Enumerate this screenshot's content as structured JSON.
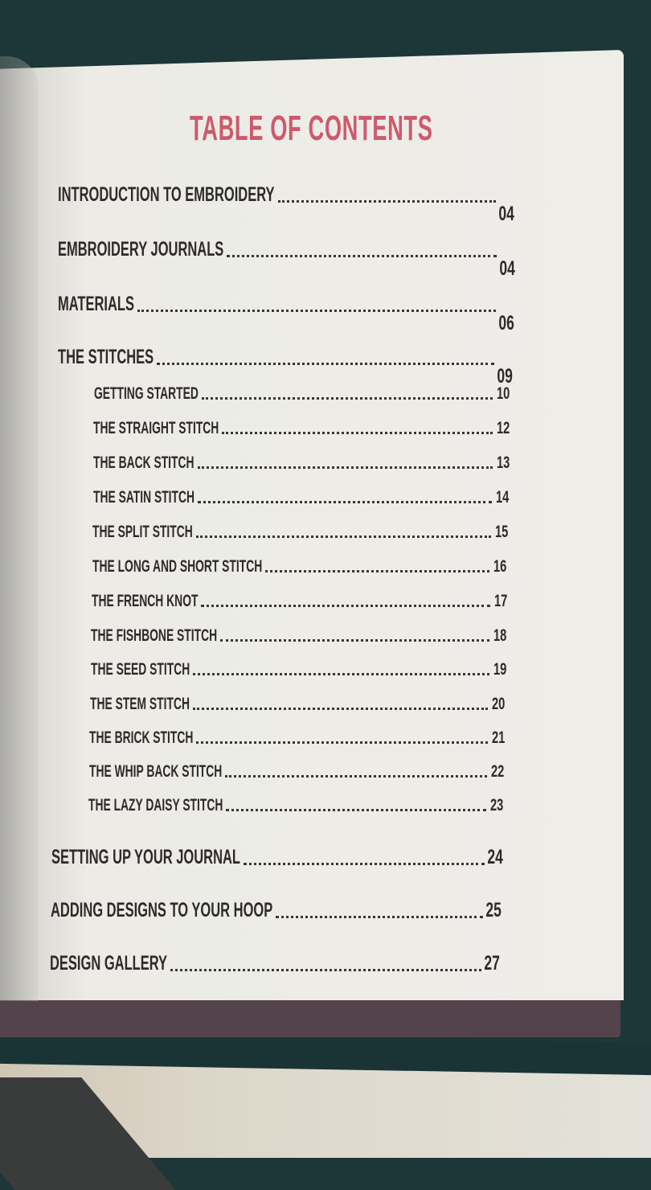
{
  "title": "TABLE OF CONTENTS",
  "entries": [
    {
      "label": "INTRODUCTION TO EMBROIDERY",
      "page": "04",
      "level": 1
    },
    {
      "label": "EMBROIDERY JOURNALS",
      "page": "04",
      "level": 1
    },
    {
      "label": "MATERIALS",
      "page": "06",
      "level": 1
    },
    {
      "label": "THE  STITCHES",
      "page": "09",
      "level": 1
    },
    {
      "label": "GETTING STARTED",
      "page": "10",
      "level": 2
    },
    {
      "label": "THE STRAIGHT STITCH",
      "page": "12",
      "level": 2
    },
    {
      "label": "THE BACK STITCH",
      "page": "13",
      "level": 2
    },
    {
      "label": "THE SATIN STITCH",
      "page": "14",
      "level": 2
    },
    {
      "label": "THE SPLIT STITCH",
      "page": "15",
      "level": 2
    },
    {
      "label": "THE LONG AND SHORT STITCH",
      "page": "16",
      "level": 2
    },
    {
      "label": "THE FRENCH KNOT",
      "page": "17",
      "level": 2
    },
    {
      "label": "THE FISHBONE STITCH",
      "page": "18",
      "level": 2
    },
    {
      "label": "THE SEED STITCH",
      "page": "19",
      "level": 2
    },
    {
      "label": "THE STEM STITCH",
      "page": "20",
      "level": 2
    },
    {
      "label": "THE BRICK STITCH",
      "page": "21",
      "level": 2
    },
    {
      "label": "THE WHIP BACK STITCH",
      "page": "22",
      "level": 2
    },
    {
      "label": "THE LAZY DAISY STITCH",
      "page": "23",
      "level": 2
    },
    {
      "label": "SETTING UP YOUR JOURNAL",
      "page": "24",
      "level": 1
    },
    {
      "label": "ADDING DESIGNS TO YOUR HOOP",
      "page": "25",
      "level": 1
    },
    {
      "label": "DESIGN GALLERY",
      "page": "27",
      "level": 1
    }
  ],
  "colors": {
    "title": "#cc5a6c",
    "text": "#2e2a2b",
    "page": "#eeede8",
    "band": "#54434a",
    "cover": "#1d3637"
  }
}
